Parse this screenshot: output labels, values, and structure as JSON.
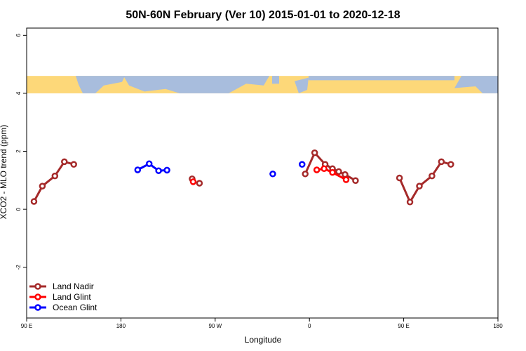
{
  "chart_data": {
    "type": "line",
    "title": "50N-60N February (Ver 10)   2015-01-01 to 2020-12-18",
    "xlabel": "Longitude",
    "ylabel": "XCO2 - MLO trend (ppm)",
    "x_ticks": [
      {
        "value": 0,
        "label": "90 E"
      },
      {
        "value": 90,
        "label": "180"
      },
      {
        "value": 180,
        "label": "90 W"
      },
      {
        "value": 270,
        "label": "0"
      },
      {
        "value": 360,
        "label": "90 E"
      },
      {
        "value": 450,
        "label": "180"
      }
    ],
    "y_ticks": [
      -2,
      0,
      2,
      4,
      6
    ],
    "xlim": [
      0,
      450
    ],
    "ylim": [
      -3.75,
      6.25
    ],
    "colors": {
      "Land Nadir": "#a52a2a",
      "Land Glint": "#ff0000",
      "Ocean Glint": "#0000ff",
      "map_ocean": "#a8bddd",
      "map_land": "#fdd879"
    },
    "map_band": {
      "y_min": 4.0,
      "y_max": 4.6
    },
    "legend": {
      "placement": "bottom-left",
      "entries": [
        "Land Nadir",
        "Land Glint",
        "Ocean Glint"
      ]
    },
    "series": [
      {
        "name": "Land Nadir",
        "segments": [
          [
            [
              7,
              0.27
            ],
            [
              15,
              0.8
            ],
            [
              27,
              1.15
            ],
            [
              36,
              1.64
            ],
            [
              45,
              1.55
            ]
          ],
          [
            [
              158,
              1.05
            ]
          ],
          [
            [
              165,
              0.9
            ]
          ],
          [
            [
              266,
              1.22
            ],
            [
              275,
              1.95
            ],
            [
              285,
              1.55
            ],
            [
              292,
              1.4
            ],
            [
              298,
              1.3
            ],
            [
              304,
              1.2
            ],
            [
              314,
              0.99
            ]
          ],
          [
            [
              356,
              1.08
            ],
            [
              366,
              0.25
            ],
            [
              375,
              0.8
            ],
            [
              387,
              1.15
            ],
            [
              396,
              1.64
            ],
            [
              405,
              1.55
            ]
          ]
        ]
      },
      {
        "name": "Land Glint",
        "segments": [
          [
            [
              159,
              0.95
            ]
          ],
          [
            [
              277,
              1.36
            ],
            [
              284,
              1.4
            ],
            [
              292,
              1.27
            ],
            [
              305,
              1.02
            ]
          ]
        ]
      },
      {
        "name": "Ocean Glint",
        "segments": [
          [
            [
              106,
              1.36
            ],
            [
              117,
              1.57
            ],
            [
              126,
              1.33
            ],
            [
              134,
              1.35
            ]
          ],
          [
            [
              235,
              1.22
            ]
          ],
          [
            [
              263,
              1.55
            ]
          ]
        ]
      }
    ]
  }
}
